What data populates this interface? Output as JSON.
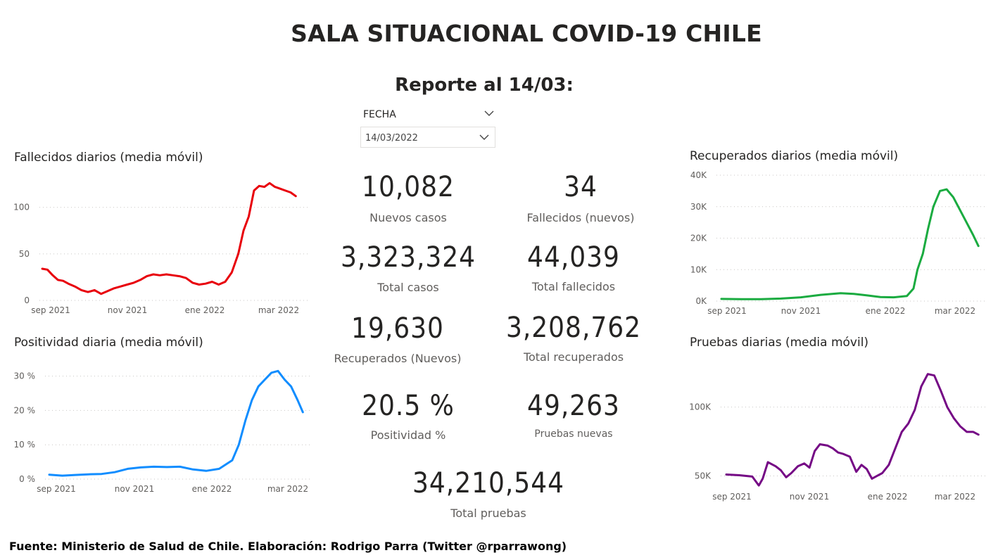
{
  "header": {
    "title": "SALA SITUACIONAL COVID-19 CHILE",
    "subtitle": "Reporte al 14/03:"
  },
  "slicer": {
    "label": "FECHA",
    "value": "14/03/2022",
    "icon": "chevron-down-icon"
  },
  "kpis": {
    "nuevos_casos": {
      "value": "10,082",
      "label": "Nuevos casos"
    },
    "fallecidos_nuevos": {
      "value": "34",
      "label": "Fallecidos (nuevos)"
    },
    "total_casos": {
      "value": "3,323,324",
      "label": "Total casos"
    },
    "total_fallecidos": {
      "value": "44,039",
      "label": "Total fallecidos"
    },
    "recuperados_nuevos": {
      "value": "19,630",
      "label": "Recuperados (Nuevos)"
    },
    "total_recuperados": {
      "value": "3,208,762",
      "label": "Total recuperados"
    },
    "positividad": {
      "value": "20.5 %",
      "label": "Positividad %"
    },
    "pruebas_nuevas": {
      "value": "49,263",
      "label": "Pruebas nuevas"
    },
    "total_pruebas": {
      "value": "34,210,544",
      "label": "Total pruebas"
    }
  },
  "footer": {
    "source": "Fuente: Ministerio de Salud de Chile. Elaboración: Rodrigo Parra (Twitter @rparrawong)"
  },
  "chart_data": [
    {
      "id": "fallecidos",
      "type": "line",
      "title": "Fallecidos diarios (media móvil)",
      "color": "#e8000b",
      "x_ticks": [
        "sep 2021",
        "nov 2021",
        "ene 2022",
        "mar 2022"
      ],
      "y_ticks": [
        0,
        50,
        100
      ],
      "y_tick_labels": [
        "0",
        "50",
        "100"
      ],
      "ylim": [
        0,
        130
      ],
      "xlim": [
        0,
        196
      ],
      "grid": true,
      "x": [
        0,
        4,
        8,
        12,
        16,
        20,
        25,
        30,
        35,
        40,
        45,
        50,
        55,
        60,
        65,
        70,
        75,
        80,
        85,
        90,
        95,
        100,
        105,
        110,
        115,
        120,
        125,
        130,
        135,
        140,
        145,
        150,
        154,
        158,
        162,
        166,
        170,
        174,
        178,
        182,
        186,
        190,
        194
      ],
      "values": [
        34,
        33,
        27,
        22,
        21,
        18,
        15,
        11,
        9,
        11,
        7,
        10,
        13,
        15,
        17,
        19,
        22,
        26,
        28,
        27,
        28,
        27,
        26,
        24,
        19,
        17,
        18,
        20,
        17,
        20,
        30,
        50,
        75,
        90,
        118,
        123,
        122,
        126,
        122,
        120,
        118,
        116,
        112
      ]
    },
    {
      "id": "positividad",
      "type": "line",
      "title": "Positividad diaria (media móvil)",
      "color": "#118dff",
      "x_ticks": [
        "sep 2021",
        "nov 2021",
        "ene 2022",
        "mar 2022"
      ],
      "y_ticks": [
        0,
        10,
        20,
        30
      ],
      "y_tick_labels": [
        "0 %",
        "10 %",
        "20 %",
        "30 %"
      ],
      "ylim": [
        0,
        33
      ],
      "xlim": [
        0,
        196
      ],
      "grid": true,
      "x": [
        0,
        10,
        20,
        30,
        40,
        50,
        60,
        70,
        80,
        90,
        100,
        110,
        120,
        130,
        140,
        145,
        150,
        155,
        160,
        165,
        170,
        175,
        180,
        185,
        190,
        194
      ],
      "values": [
        1.3,
        1.0,
        1.2,
        1.4,
        1.5,
        2.0,
        3.0,
        3.4,
        3.6,
        3.5,
        3.6,
        2.8,
        2.4,
        3.0,
        5.5,
        10,
        17,
        23,
        27,
        29,
        31,
        31.5,
        29,
        27,
        23,
        19.5
      ]
    },
    {
      "id": "recuperados",
      "type": "line",
      "title": "Recuperados diarios (media móvil)",
      "color": "#1aab40",
      "x_ticks": [
        "sep 2021",
        "nov 2021",
        "ene 2022",
        "mar 2022"
      ],
      "y_ticks": [
        0,
        10000,
        20000,
        30000,
        40000
      ],
      "y_tick_labels": [
        "0K",
        "10K",
        "20K",
        "30K",
        "40K"
      ],
      "ylim": [
        0,
        40000
      ],
      "xlim": [
        0,
        196
      ],
      "grid": true,
      "x": [
        0,
        15,
        30,
        45,
        60,
        75,
        90,
        100,
        110,
        120,
        130,
        140,
        145,
        148,
        152,
        156,
        160,
        165,
        170,
        175,
        180,
        185,
        190,
        194
      ],
      "values": [
        700,
        600,
        600,
        800,
        1200,
        2000,
        2500,
        2300,
        1800,
        1300,
        1200,
        1600,
        4000,
        10000,
        15000,
        23000,
        30000,
        35000,
        35500,
        33000,
        29000,
        25000,
        21000,
        17500
      ]
    },
    {
      "id": "pruebas",
      "type": "line",
      "title": "Pruebas diarias (media móvil)",
      "color": "#750985",
      "x_ticks": [
        "sep 2021",
        "nov 2021",
        "ene 2022",
        "mar 2022"
      ],
      "y_ticks": [
        50000,
        100000
      ],
      "y_tick_labels": [
        "50K",
        "100K"
      ],
      "ylim": [
        40000,
        130000
      ],
      "xlim": [
        0,
        196
      ],
      "grid": true,
      "x": [
        0,
        10,
        20,
        25,
        28,
        32,
        38,
        42,
        46,
        50,
        55,
        60,
        64,
        68,
        72,
        78,
        82,
        86,
        90,
        95,
        100,
        104,
        108,
        112,
        116,
        120,
        125,
        130,
        135,
        140,
        145,
        150,
        155,
        160,
        165,
        170,
        175,
        180,
        185,
        190,
        194
      ],
      "values": [
        51000,
        50500,
        49500,
        43000,
        48000,
        60000,
        57000,
        54000,
        49000,
        52000,
        57000,
        59000,
        56000,
        68000,
        73000,
        72000,
        70000,
        67000,
        66000,
        64000,
        53000,
        58000,
        55000,
        48000,
        50000,
        52000,
        58000,
        70000,
        82000,
        88000,
        98000,
        115000,
        124000,
        123000,
        112000,
        100000,
        92000,
        86000,
        82000,
        82000,
        80000
      ]
    }
  ]
}
